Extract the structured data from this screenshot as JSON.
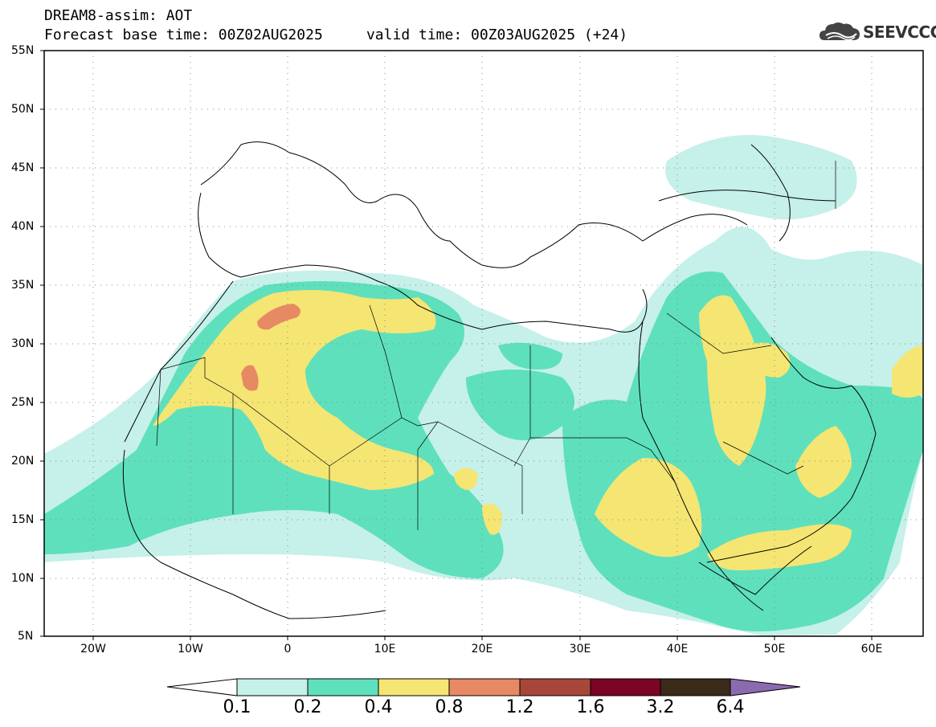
{
  "title": {
    "line1": "DREAM8-assim: AOT",
    "line2": "Forecast base time: 00Z02AUG2025     valid time: 00Z03AUG2025 (+24)"
  },
  "logo": {
    "text": "SEEVCCC",
    "icon": "cloud-logo-icon"
  },
  "map": {
    "lat_labels": [
      "55N",
      "50N",
      "45N",
      "40N",
      "35N",
      "30N",
      "25N",
      "20N",
      "15N",
      "10N",
      "5N"
    ],
    "lon_labels": [
      "20W",
      "10W",
      "0",
      "10E",
      "20E",
      "30E",
      "40E",
      "50E",
      "60E"
    ],
    "lat_range": [
      5,
      55
    ],
    "lon_range": [
      -25,
      65
    ],
    "grid": "dotted",
    "levels": [
      0.1,
      0.2,
      0.4,
      0.8,
      1.2,
      1.6,
      3.2,
      6.4
    ],
    "level_colors": [
      "#c6f0ea",
      "#5ee0bc",
      "#f5e573",
      "#e78a64",
      "#a7473a",
      "#7c0424",
      "#3a2a1a",
      "#8b6bb0"
    ]
  },
  "colorbar": {
    "labels": [
      "0.1",
      "0.2",
      "0.4",
      "0.8",
      "1.2",
      "1.6",
      "3.2",
      "6.4"
    ],
    "colors": [
      "#c6f0ea",
      "#5ee0bc",
      "#f5e573",
      "#e78a64",
      "#a7473a",
      "#7c0424",
      "#3a2a1a"
    ],
    "under_color": "#ffffff",
    "over_color": "#8b6bb0"
  }
}
